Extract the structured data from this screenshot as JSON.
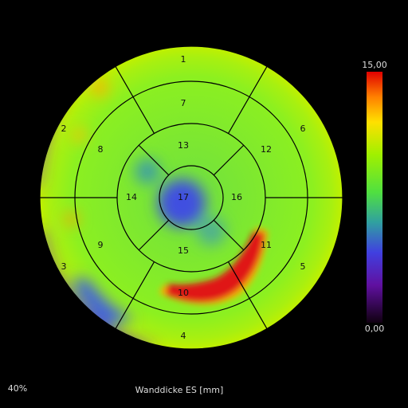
{
  "segments": [
    "1",
    "2",
    "3",
    "4",
    "5",
    "6",
    "7",
    "8",
    "9",
    "10",
    "11",
    "12",
    "13",
    "14",
    "15",
    "16",
    "17"
  ],
  "colorbar": {
    "max": "15,00",
    "min": "0,00"
  },
  "zoom": "40%",
  "caption": "Wanddicke ES [mm]"
}
